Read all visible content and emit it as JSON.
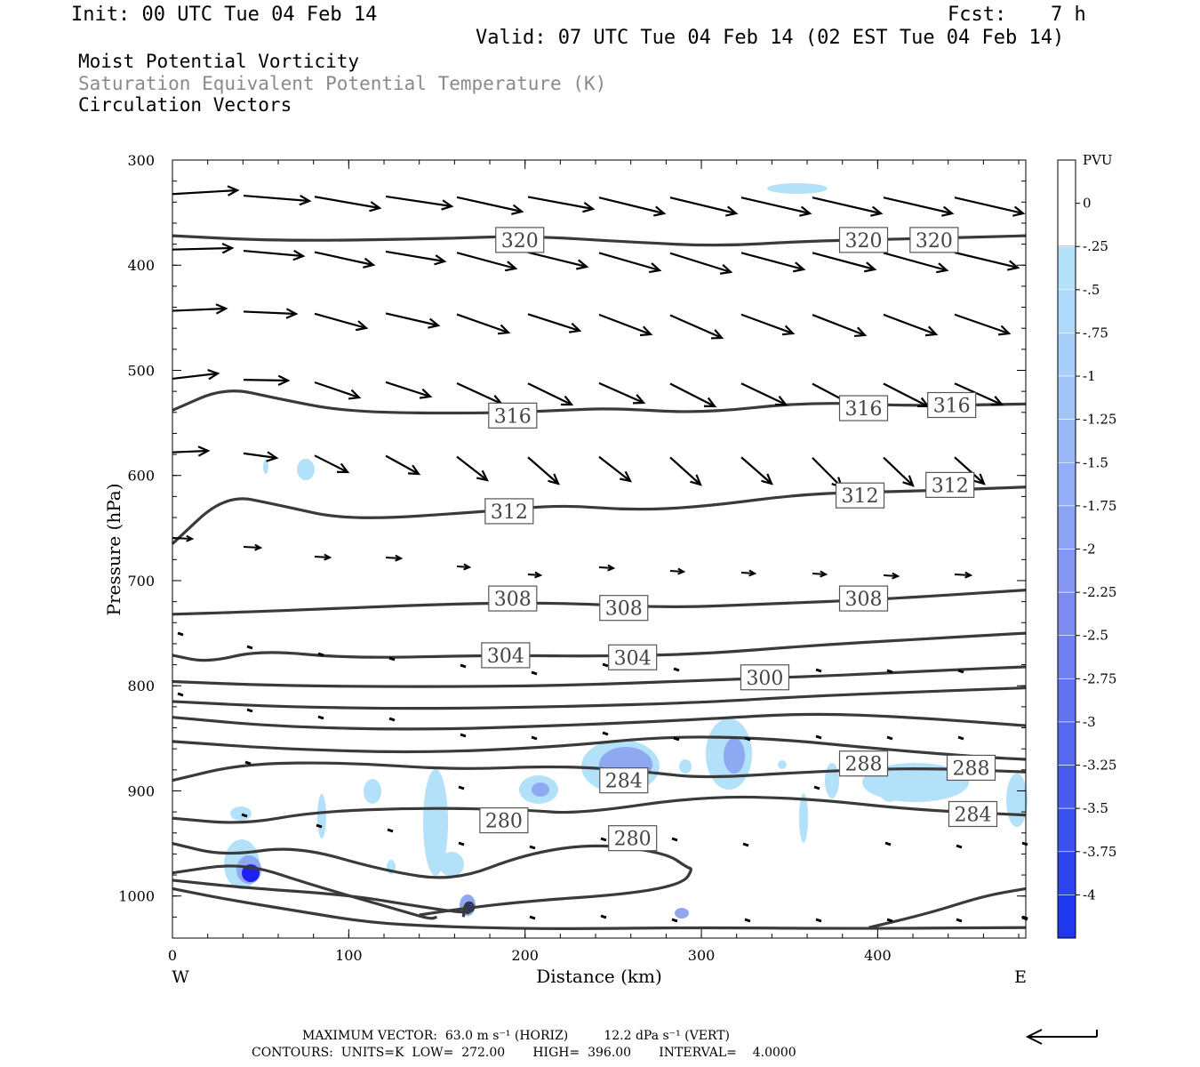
{
  "header": {
    "init": "Init: 00 UTC Tue 04 Feb 14",
    "fcst_label": "Fcst:",
    "fcst_value": "7 h",
    "valid": "Valid: 07 UTC Tue 04 Feb 14 (02 EST Tue 04 Feb 14)"
  },
  "fields": [
    {
      "label": "Moist Potential Vorticity",
      "color": "#000000"
    },
    {
      "label": "Saturation Equivalent Potential Temperature (K)",
      "color": "#8a8a8a"
    },
    {
      "label": "Circulation Vectors",
      "color": "#000000"
    }
  ],
  "footer": {
    "max_vector": "MAXIMUM VECTOR:  63.0 m s⁻¹ (HORIZ)         12.2 dPa s⁻¹ (VERT)",
    "contours": "CONTOURS:  UNITS=K  LOW=  272.00       HIGH=  396.00       INTERVAL=    4.0000"
  },
  "colors": {
    "contour": "#3a3a3a",
    "pv_light": "#b3e1fa",
    "pv_mid": "#8fa8f2",
    "pv_dark": "#1f22ee"
  },
  "chart_data": {
    "type": "heatmap",
    "xlabel": "Distance (km)",
    "ylabel": "Pressure (hPa)",
    "xlim": [
      0,
      484
    ],
    "ylim": [
      1040,
      300
    ],
    "x_ticks": [
      "0",
      "100",
      "200",
      "300",
      "400"
    ],
    "y_ticks": [
      "300",
      "400",
      "500",
      "600",
      "700",
      "800",
      "900",
      "1000"
    ],
    "x_end_labels": {
      "left": "W",
      "right": "E"
    },
    "colorbar": {
      "units": "PVU",
      "labels": [
        "0",
        "-.25",
        "-.5",
        "-.75",
        "-1",
        "-1.25",
        "-1.5",
        "-1.75",
        "-2",
        "-2.25",
        "-2.5",
        "-2.75",
        "-3",
        "-3.25",
        "-3.5",
        "-3.75",
        "-4"
      ],
      "colors": [
        "#ffffff",
        "#b4e2fb",
        "#aed9fa",
        "#a7cff9",
        "#a0c4f8",
        "#99b9f7",
        "#92aef6",
        "#8ba2f5",
        "#8497f4",
        "#7d8bf3",
        "#7080f2",
        "#6274f1",
        "#5468f0",
        "#475cef",
        "#3a50ef",
        "#2d44ee",
        "#1f38ee"
      ]
    },
    "contour_labels": [
      {
        "text": "320",
        "x": 197,
        "p": 376
      },
      {
        "text": "320",
        "x": 392,
        "p": 376
      },
      {
        "text": "320",
        "x": 432,
        "p": 376
      },
      {
        "text": "316",
        "x": 193,
        "p": 543
      },
      {
        "text": "316",
        "x": 392,
        "p": 536
      },
      {
        "text": "316",
        "x": 442,
        "p": 533
      },
      {
        "text": "312",
        "x": 191,
        "p": 634
      },
      {
        "text": "312",
        "x": 390,
        "p": 619
      },
      {
        "text": "312",
        "x": 441,
        "p": 609
      },
      {
        "text": "308",
        "x": 193,
        "p": 717
      },
      {
        "text": "308",
        "x": 256,
        "p": 726
      },
      {
        "text": "308",
        "x": 392,
        "p": 717
      },
      {
        "text": "304",
        "x": 189,
        "p": 771
      },
      {
        "text": "304",
        "x": 261,
        "p": 773
      },
      {
        "text": "300",
        "x": 336,
        "p": 792
      },
      {
        "text": "288",
        "x": 392,
        "p": 874
      },
      {
        "text": "288",
        "x": 453,
        "p": 878
      },
      {
        "text": "284",
        "x": 256,
        "p": 890
      },
      {
        "text": "284",
        "x": 454,
        "p": 922
      },
      {
        "text": "280",
        "x": 188,
        "p": 928
      },
      {
        "text": "280",
        "x": 261,
        "p": 945
      }
    ]
  }
}
